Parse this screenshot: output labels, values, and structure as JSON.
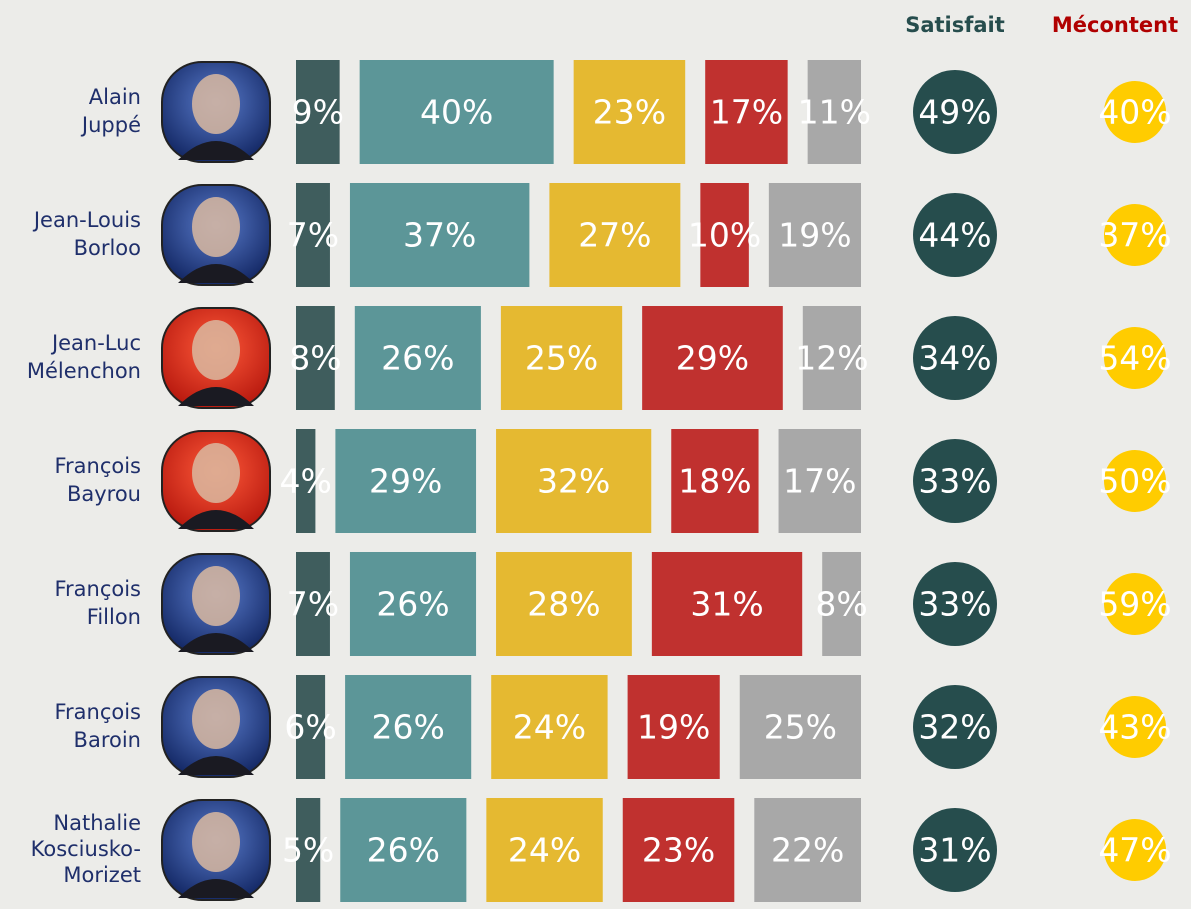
{
  "chart_data": {
    "type": "bar",
    "categories": [
      [
        "Alain",
        "Juppé"
      ],
      [
        "Jean-Louis",
        "Borloo"
      ],
      [
        "Jean-Luc",
        "Mélenchon"
      ],
      [
        "François",
        "Bayrou"
      ],
      [
        "François",
        "Fillon"
      ],
      [
        "François",
        "Baroin"
      ],
      [
        "Nathalie",
        "Kosciusko-",
        "Morizet"
      ]
    ],
    "series": [
      {
        "color": "#3f5d5d",
        "values": [
          9,
          7,
          8,
          4,
          7,
          6,
          5
        ],
        "value_labels": [
          "9%",
          "7%",
          "8%",
          "4%",
          "7%",
          "6%",
          "5%"
        ]
      },
      {
        "color": "#5c9698",
        "values": [
          40,
          37,
          26,
          29,
          26,
          26,
          26
        ],
        "value_labels": [
          "40%",
          "37%",
          "26%",
          "29%",
          "26%",
          "26%",
          "26%"
        ]
      },
      {
        "color": "#e5b931",
        "values": [
          23,
          27,
          25,
          32,
          28,
          24,
          24
        ],
        "value_labels": [
          "23%",
          "27%",
          "25%",
          "32%",
          "28%",
          "24%",
          "24%"
        ]
      },
      {
        "color": "#c0312f",
        "values": [
          17,
          10,
          29,
          18,
          31,
          19,
          23
        ],
        "value_labels": [
          "17%",
          "10%",
          "29%",
          "18%",
          "31%",
          "19%",
          "23%"
        ]
      },
      {
        "color": "#a8a8a8",
        "values": [
          11,
          19,
          12,
          17,
          8,
          25,
          22
        ],
        "value_labels": [
          "11%",
          "19%",
          "12%",
          "17%",
          "8%",
          "25%",
          "22%"
        ]
      }
    ],
    "satisfait": {
      "label": "Satisfait",
      "color": "#264d4d",
      "values": [
        49,
        44,
        34,
        33,
        33,
        32,
        31
      ],
      "value_labels": [
        "49%",
        "44%",
        "34%",
        "33%",
        "33%",
        "32%",
        "31%"
      ]
    },
    "mecontent": {
      "label": "Mécontent",
      "color": "#ffcc00",
      "values": [
        40,
        37,
        54,
        50,
        59,
        43,
        47
      ],
      "value_labels": [
        "40%",
        "37%",
        "54%",
        "50%",
        "59%",
        "43%",
        "47%"
      ]
    }
  }
}
